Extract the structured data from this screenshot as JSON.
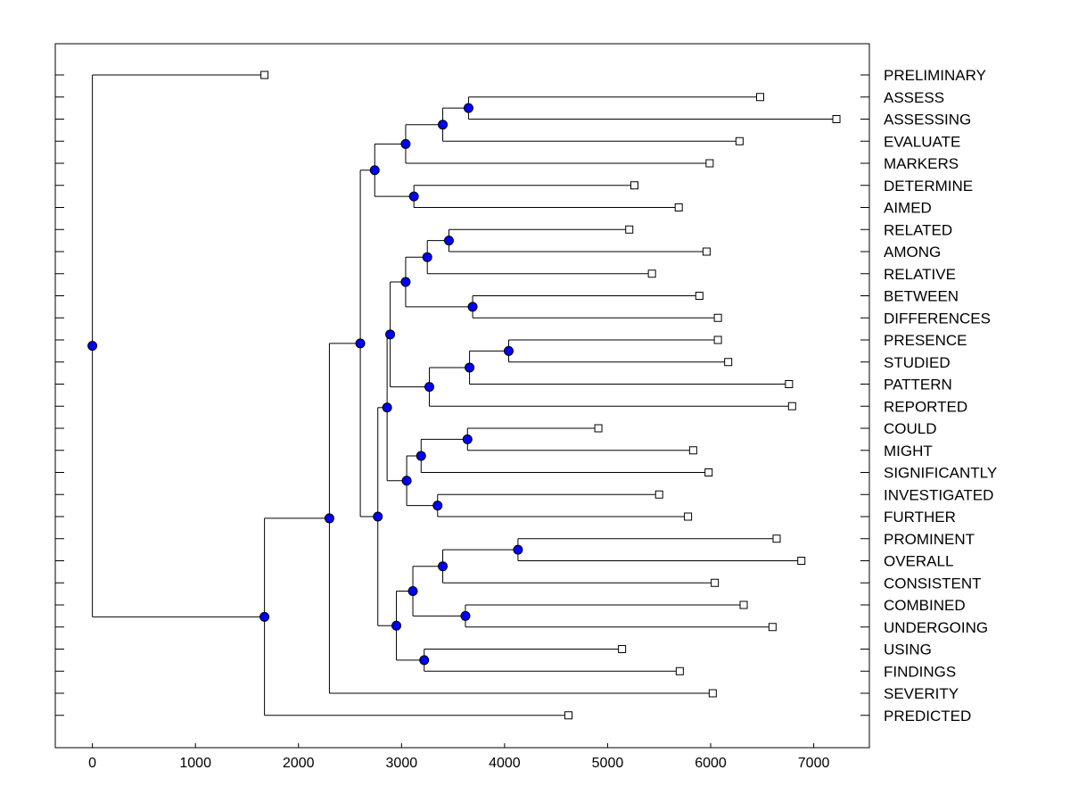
{
  "chart_data": {
    "type": "dendrogram",
    "title": "",
    "xlabel": "",
    "ylabel": "",
    "xlim": [
      -360,
      7540
    ],
    "x_ticks": [
      0,
      1000,
      2000,
      3000,
      4000,
      5000,
      6000,
      7000
    ],
    "leaves": [
      {
        "name": "PRELIMINARY",
        "value": 1670
      },
      {
        "name": "ASSESS",
        "value": 6480
      },
      {
        "name": "ASSESSING",
        "value": 7220
      },
      {
        "name": "EVALUATE",
        "value": 6280
      },
      {
        "name": "MARKERS",
        "value": 5990
      },
      {
        "name": "DETERMINE",
        "value": 5260
      },
      {
        "name": "AIMED",
        "value": 5690
      },
      {
        "name": "RELATED",
        "value": 5210
      },
      {
        "name": "AMONG",
        "value": 5960
      },
      {
        "name": "RELATIVE",
        "value": 5430
      },
      {
        "name": "BETWEEN",
        "value": 5890
      },
      {
        "name": "DIFFERENCES",
        "value": 6070
      },
      {
        "name": "PRESENCE",
        "value": 6070
      },
      {
        "name": "STUDIED",
        "value": 6170
      },
      {
        "name": "PATTERN",
        "value": 6760
      },
      {
        "name": "REPORTED",
        "value": 6790
      },
      {
        "name": "COULD",
        "value": 4910
      },
      {
        "name": "MIGHT",
        "value": 5830
      },
      {
        "name": "SIGNIFICANTLY",
        "value": 5980
      },
      {
        "name": "INVESTIGATED",
        "value": 5500
      },
      {
        "name": "FURTHER",
        "value": 5780
      },
      {
        "name": "PROMINENT",
        "value": 6640
      },
      {
        "name": "OVERALL",
        "value": 6880
      },
      {
        "name": "CONSISTENT",
        "value": 6040
      },
      {
        "name": "COMBINED",
        "value": 6320
      },
      {
        "name": "UNDERGOING",
        "value": 6600
      },
      {
        "name": "USING",
        "value": 5140
      },
      {
        "name": "FINDINGS",
        "value": 5700
      },
      {
        "name": "SEVERITY",
        "value": 6020
      },
      {
        "name": "PREDICTED",
        "value": 4620
      }
    ],
    "merges": [
      {
        "id": "n1",
        "height": 3650,
        "children": [
          "ASSESS",
          "ASSESSING"
        ]
      },
      {
        "id": "n2",
        "height": 3400,
        "children": [
          "n1",
          "EVALUATE"
        ]
      },
      {
        "id": "n3",
        "height": 3040,
        "children": [
          "n2",
          "MARKERS"
        ]
      },
      {
        "id": "n4",
        "height": 3120,
        "children": [
          "DETERMINE",
          "AIMED"
        ]
      },
      {
        "id": "n5",
        "height": 2740,
        "children": [
          "n3",
          "n4"
        ]
      },
      {
        "id": "n6",
        "height": 3460,
        "children": [
          "RELATED",
          "AMONG"
        ]
      },
      {
        "id": "n7",
        "height": 3250,
        "children": [
          "n6",
          "RELATIVE"
        ]
      },
      {
        "id": "n8",
        "height": 3690,
        "children": [
          "BETWEEN",
          "DIFFERENCES"
        ]
      },
      {
        "id": "n9",
        "height": 3040,
        "children": [
          "n7",
          "n8"
        ]
      },
      {
        "id": "n10",
        "height": 4040,
        "children": [
          "PRESENCE",
          "STUDIED"
        ]
      },
      {
        "id": "n11",
        "height": 3660,
        "children": [
          "n10",
          "PATTERN"
        ]
      },
      {
        "id": "n12",
        "height": 3270,
        "children": [
          "n11",
          "REPORTED"
        ]
      },
      {
        "id": "n13",
        "height": 2890,
        "children": [
          "n9",
          "n12"
        ]
      },
      {
        "id": "n14",
        "height": 3640,
        "children": [
          "COULD",
          "MIGHT"
        ]
      },
      {
        "id": "n15",
        "height": 3190,
        "children": [
          "n14",
          "SIGNIFICANTLY"
        ]
      },
      {
        "id": "n16",
        "height": 3350,
        "children": [
          "INVESTIGATED",
          "FURTHER"
        ]
      },
      {
        "id": "n17",
        "height": 3050,
        "children": [
          "n15",
          "n16"
        ]
      },
      {
        "id": "n18",
        "height": 2860,
        "children": [
          "n13",
          "n17"
        ]
      },
      {
        "id": "n19",
        "height": 4130,
        "children": [
          "PROMINENT",
          "OVERALL"
        ]
      },
      {
        "id": "n20",
        "height": 3400,
        "children": [
          "n19",
          "CONSISTENT"
        ]
      },
      {
        "id": "n21",
        "height": 3620,
        "children": [
          "COMBINED",
          "UNDERGOING"
        ]
      },
      {
        "id": "n22",
        "height": 3110,
        "children": [
          "n20",
          "n21"
        ]
      },
      {
        "id": "n23",
        "height": 3220,
        "children": [
          "USING",
          "FINDINGS"
        ]
      },
      {
        "id": "n24",
        "height": 2950,
        "children": [
          "n22",
          "n23"
        ]
      },
      {
        "id": "n25",
        "height": 2770,
        "children": [
          "n18",
          "n24"
        ]
      },
      {
        "id": "n26",
        "height": 2600,
        "children": [
          "n5",
          "n25"
        ]
      },
      {
        "id": "n27",
        "height": 2300,
        "children": [
          "n26",
          "SEVERITY"
        ]
      },
      {
        "id": "n28",
        "height": 1670,
        "children": [
          "n27",
          "PREDICTED"
        ]
      },
      {
        "id": "root",
        "height": 0,
        "children": [
          "PRELIMINARY",
          "n28"
        ]
      }
    ],
    "colors": {
      "node_fill": "#0000ff",
      "node_stroke": "#000000",
      "leaf_fill": "#ffffff",
      "line": "#000000"
    }
  }
}
